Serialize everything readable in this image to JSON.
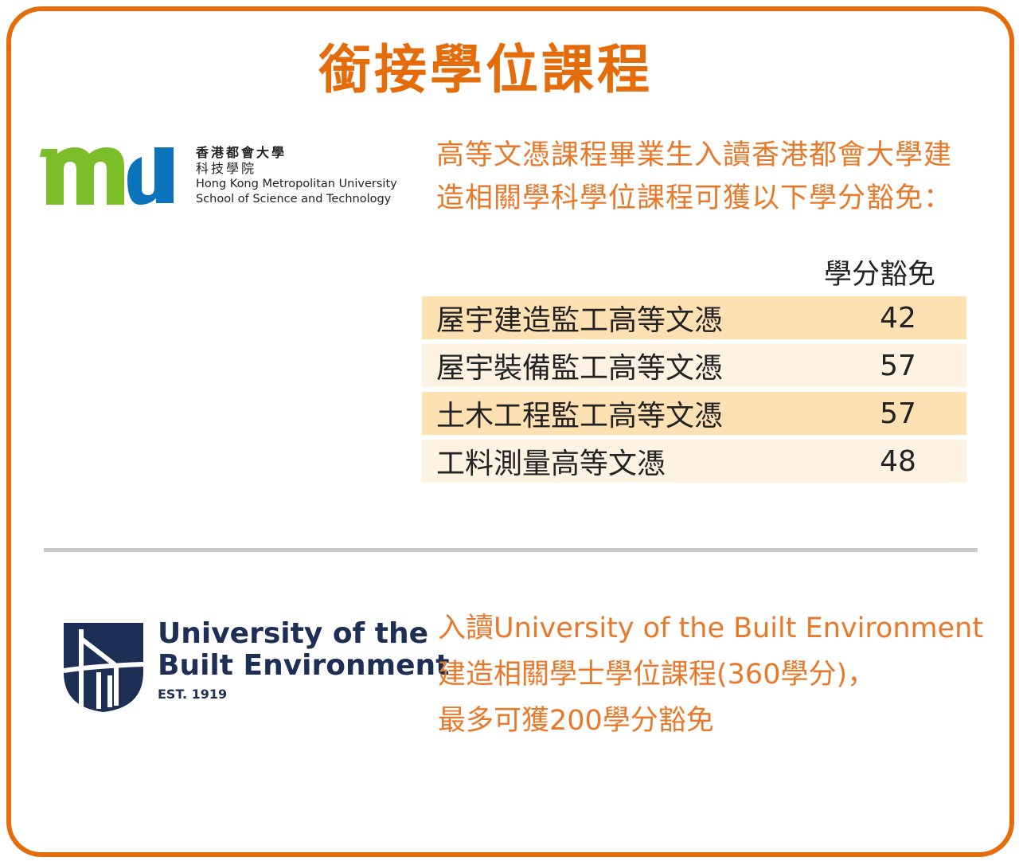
{
  "title": "銜接學位課程",
  "colors": {
    "accent": "#e46c0a",
    "row_odd": "#fde1b3",
    "row_even": "#fef3e3",
    "hkmu_green": "#7cbd2a",
    "hkmu_blue": "#0b72bc",
    "ube_navy": "#1e2f55"
  },
  "hkmu": {
    "logo_letters": "mu",
    "name_zh": "香港都會大學",
    "school_zh": "科技學院",
    "name_en": "Hong Kong Metropolitan University",
    "school_en": "School of Science and Technology",
    "intro": "高等文憑課程畢業生入讀香港都會大學建造相關學科學位課程可獲以下學分豁免：",
    "table_header": "學分豁免",
    "rows": [
      {
        "programme": "屋宇建造監工高等文憑",
        "credits": "42"
      },
      {
        "programme": "屋宇裝備監工高等文憑",
        "credits": "57"
      },
      {
        "programme": "土木工程監工高等文憑",
        "credits": "57"
      },
      {
        "programme": "工料測量高等文憑",
        "credits": "48"
      }
    ]
  },
  "ube": {
    "line1": "University of the",
    "line2": "Built Environment",
    "est": "EST. 1919",
    "text1": "入讀University of the Built Environment",
    "text2": "建造相關學士學位課程(360學分)，",
    "text3": "最多可獲200學分豁免"
  }
}
